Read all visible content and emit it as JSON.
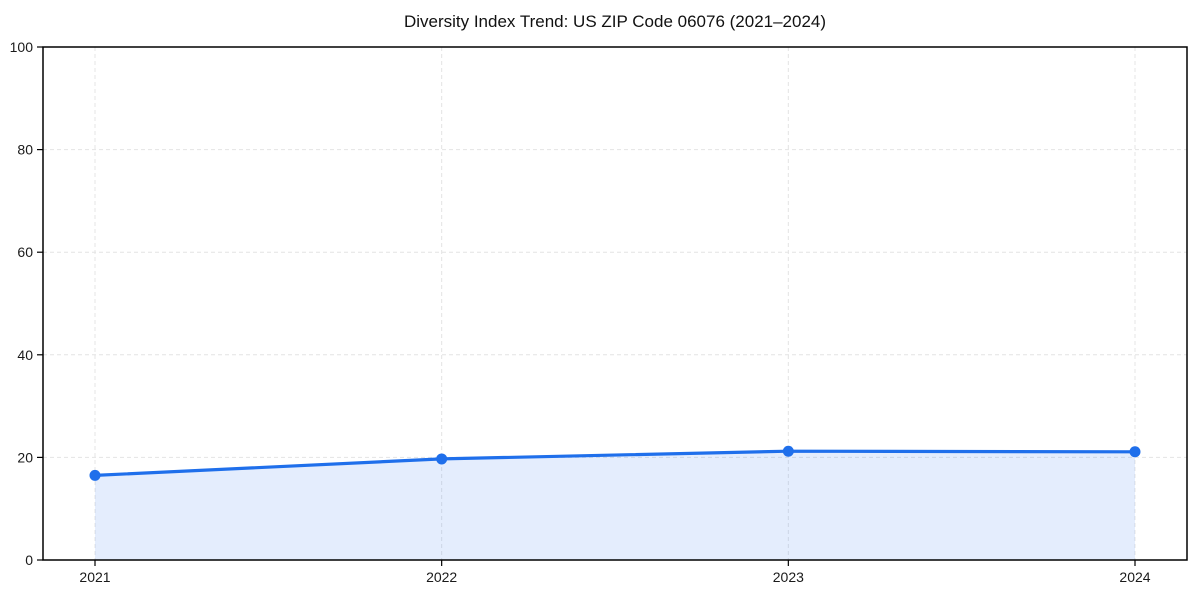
{
  "chart_data": {
    "type": "area",
    "title": "Diversity Index Trend: US ZIP Code 06076 (2021–2024)",
    "x": [
      "2021",
      "2022",
      "2023",
      "2024"
    ],
    "series": [
      {
        "name": "Diversity Index",
        "values": [
          16.5,
          19.7,
          21.2,
          21.1
        ]
      }
    ],
    "xlabel": "",
    "ylabel": "",
    "ylim": [
      0,
      100
    ],
    "yticks": [
      0,
      20,
      40,
      60,
      80,
      100
    ],
    "grid": true,
    "grid_style": "dashed",
    "legend_position": "none",
    "colors": {
      "line": "#1f6feb",
      "marker": "#1f6feb",
      "fill": "rgba(31, 111, 235, 0.12)",
      "grid": "#e4e4e4",
      "axis": "#000000",
      "tick_text": "#1a1a1a",
      "background": "#ffffff"
    }
  }
}
